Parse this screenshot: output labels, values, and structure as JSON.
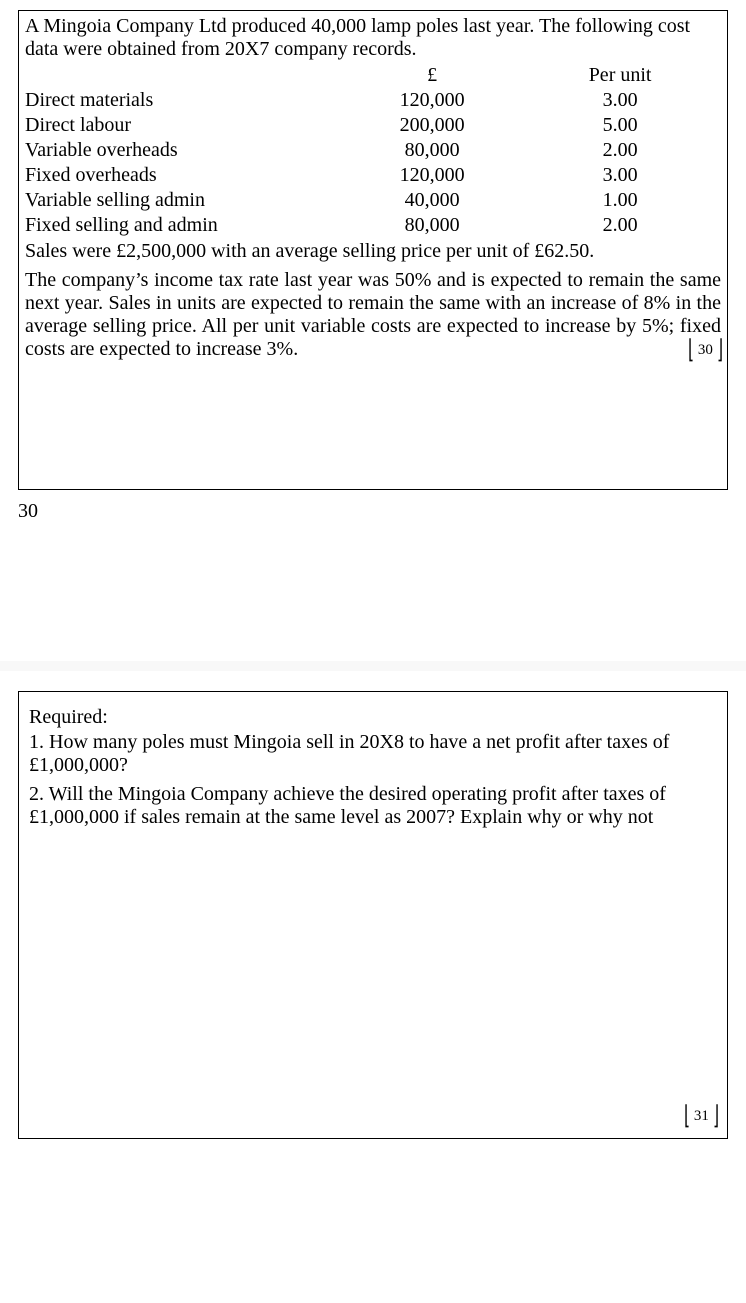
{
  "page1": {
    "intro": "A Mingoia Company Ltd produced 40,000 lamp poles last year. The following cost data were obtained from 20X7 company records.",
    "table": {
      "headers": {
        "amount": "£",
        "unit": "Per unit"
      },
      "rows": [
        {
          "label": "Direct materials",
          "amount": "120,000",
          "unit": "3.00"
        },
        {
          "label": "Direct labour",
          "amount": "200,000",
          "unit": "5.00"
        },
        {
          "label": "Variable overheads",
          "amount": "80,000",
          "unit": "2.00"
        },
        {
          "label": "Fixed overheads",
          "amount": "120,000",
          "unit": "3.00"
        },
        {
          "label": "Variable selling admin",
          "amount": "40,000",
          "unit": "1.00"
        },
        {
          "label": "Fixed selling and admin",
          "amount": "80,000",
          "unit": "2.00"
        }
      ]
    },
    "sales_line": "Sales were £2,500,000 with an average selling price per unit of £62.50.",
    "narrative": "The company’s income tax rate last year was 50% and is expected to remain the same next year. Sales in units are expected to remain the same with an increase of 8% in the average selling price. All per unit variable costs are expected to increase by 5%; fixed costs are expected to increase 3%.",
    "page_num_inline": "30",
    "page_num_bottom": "30"
  },
  "page2": {
    "required": "Required:",
    "q1": "1. How many poles must Mingoia sell in 20X8 to have a net profit after taxes of £1,000,000?",
    "q2": "2. Will the Mingoia Company achieve the desired operating profit after taxes of £1,000,000 if sales remain at the same level as 2007? Explain why or why not",
    "page_num": "31"
  },
  "style": {
    "font_family": "Times New Roman",
    "font_size_pt": 15,
    "text_color": "#000000",
    "background_color": "#ffffff",
    "border_color": "#000000"
  }
}
